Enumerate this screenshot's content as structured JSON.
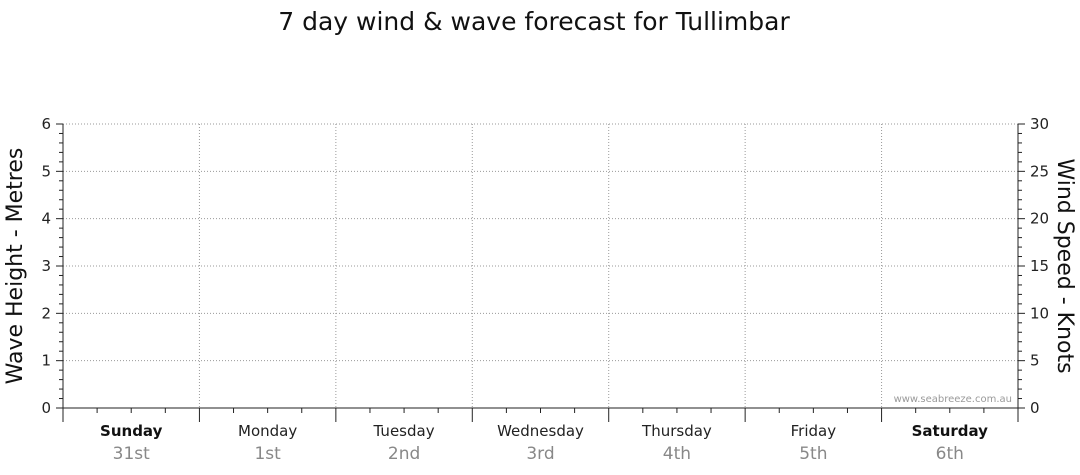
{
  "chart_data": {
    "type": "line",
    "title": "7 day wind & wave forecast for Tullimbar",
    "ylabel": "Wave Height - Metres",
    "y2label": "Wind Speed - Knots",
    "ylim": [
      0,
      6
    ],
    "y2lim": [
      0,
      30
    ],
    "yticks": [
      "0",
      "1",
      "2",
      "3",
      "4",
      "5",
      "6"
    ],
    "y2ticks": [
      "0",
      "5",
      "10",
      "15",
      "20",
      "25",
      "30"
    ],
    "grid": true,
    "days": [
      {
        "day": "Sunday",
        "date": "31st",
        "bold": true
      },
      {
        "day": "Monday",
        "date": "1st",
        "bold": false
      },
      {
        "day": "Tuesday",
        "date": "2nd",
        "bold": false
      },
      {
        "day": "Wednesday",
        "date": "3rd",
        "bold": false
      },
      {
        "day": "Thursday",
        "date": "4th",
        "bold": false
      },
      {
        "day": "Friday",
        "date": "5th",
        "bold": false
      },
      {
        "day": "Saturday",
        "date": "6th",
        "bold": true
      }
    ],
    "series": [],
    "watermark": "www.seabreeze.com.au"
  }
}
